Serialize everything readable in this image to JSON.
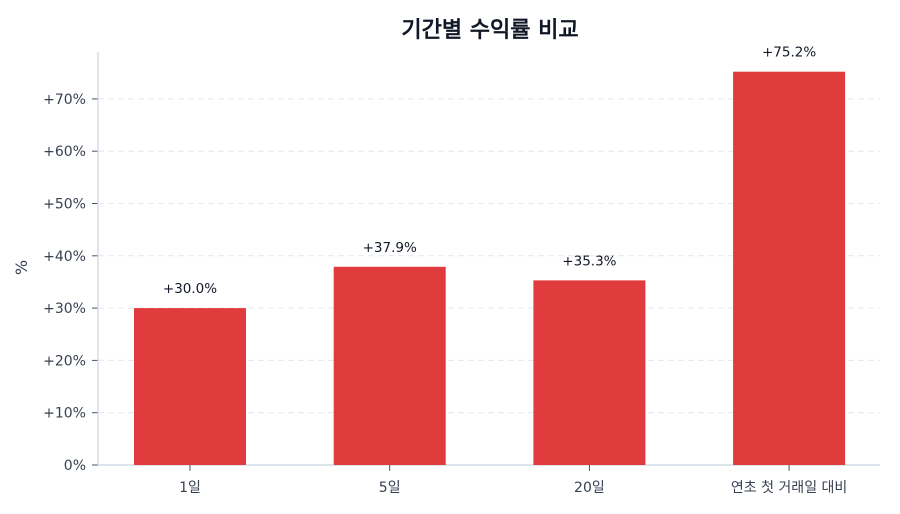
{
  "chart_data": {
    "type": "bar",
    "title": "기간별 수익률 비교",
    "xlabel": "",
    "ylabel": "%",
    "categories": [
      "1일",
      "5일",
      "20일",
      "연초 첫 거래일 대비"
    ],
    "values": [
      30.0,
      37.9,
      35.3,
      75.2
    ],
    "value_labels": [
      "+30.0%",
      "+37.9%",
      "+35.3%",
      "+75.2%"
    ],
    "ylim": [
      0,
      79
    ],
    "yticks": [
      0,
      10,
      20,
      30,
      40,
      50,
      60,
      70
    ],
    "ytick_labels": [
      "0%",
      "+10%",
      "+20%",
      "+30%",
      "+40%",
      "+50%",
      "+60%",
      "+70%"
    ],
    "grid": true,
    "legend": null,
    "colors": {
      "bar": "#e03b3d",
      "grid": "#e5e7eb",
      "axis": "#cbd5e1"
    }
  }
}
